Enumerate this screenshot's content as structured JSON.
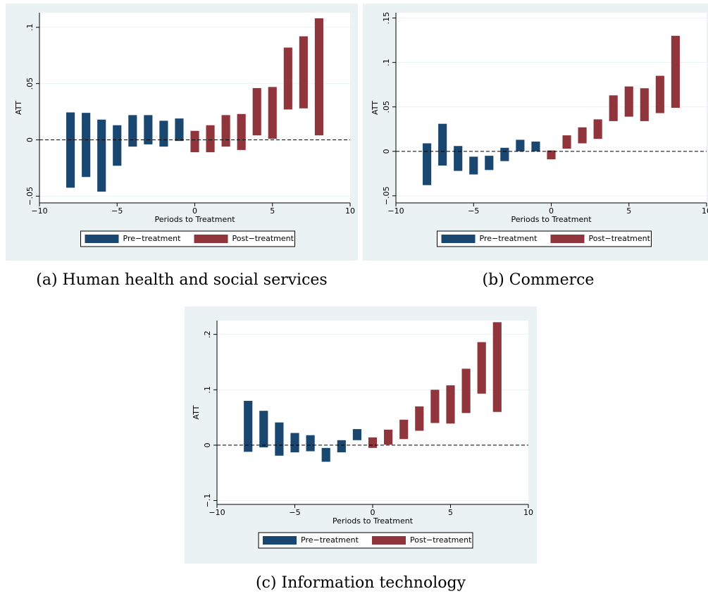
{
  "chart_data": [
    {
      "type": "range_bar",
      "caption": "(a) Human health and social services",
      "xlabel": "Periods to Treatment",
      "ylabel": "ATT",
      "xlim": [
        -10,
        10
      ],
      "xticks": [
        {
          "value": -10,
          "label": "−10"
        },
        {
          "value": -5,
          "label": "−5"
        },
        0,
        5,
        10
      ],
      "ylim": [
        -0.056,
        0.113
      ],
      "yticks": [
        {
          "value": -0.05,
          "label": "−.05"
        },
        0,
        {
          "value": 0.05,
          "label": ".05"
        },
        {
          "value": 0.1,
          "label": ".1"
        }
      ],
      "grid": true,
      "reference_line": 0,
      "legend": "bottom",
      "series": [
        {
          "name": "Pre−treatment",
          "color": "#1a476f",
          "x": [
            -8,
            -7,
            -6,
            -5,
            -4,
            -3,
            -2,
            -1
          ],
          "low": [
            -0.0425,
            -0.033,
            -0.046,
            -0.023,
            -0.006,
            -0.004,
            -0.006,
            -0.001
          ],
          "high": [
            0.0244,
            0.024,
            0.018,
            0.013,
            0.022,
            0.022,
            0.017,
            0.019
          ]
        },
        {
          "name": "Post−treatment",
          "color": "#90353b",
          "x": [
            0,
            1,
            2,
            3,
            4,
            5,
            6,
            7,
            8
          ],
          "low": [
            -0.011,
            -0.011,
            -0.006,
            -0.009,
            0.004,
            0.001,
            0.027,
            0.028,
            0.004
          ],
          "high": [
            0.008,
            0.013,
            0.022,
            0.023,
            0.046,
            0.047,
            0.082,
            0.092,
            0.108
          ]
        }
      ]
    },
    {
      "type": "range_bar",
      "caption": "(b) Commerce",
      "xlabel": "Periods to Treatment",
      "ylabel": "ATT",
      "xlim": [
        -10,
        10
      ],
      "xticks": [
        {
          "value": -10,
          "label": "−10"
        },
        {
          "value": -5,
          "label": "−5"
        },
        0,
        5,
        10
      ],
      "ylim": [
        -0.058,
        0.156
      ],
      "yticks": [
        {
          "value": -0.05,
          "label": "−.05"
        },
        0,
        {
          "value": 0.05,
          "label": ".05"
        },
        {
          "value": 0.1,
          "label": ".1"
        },
        {
          "value": 0.15,
          "label": ".15"
        }
      ],
      "grid": true,
      "reference_line": 0,
      "legend": "bottom",
      "series": [
        {
          "name": "Pre−treatment",
          "color": "#1a476f",
          "x": [
            -8,
            -7,
            -6,
            -5,
            -4,
            -3,
            -2,
            -1
          ],
          "low": [
            -0.038,
            -0.016,
            -0.022,
            -0.026,
            -0.021,
            -0.011,
            0,
            0
          ],
          "high": [
            0.009,
            0.031,
            0.006,
            -0.006,
            -0.005,
            0.004,
            0.013,
            0.011
          ]
        },
        {
          "name": "Post−treatment",
          "color": "#90353b",
          "x": [
            0,
            1,
            2,
            3,
            4,
            5,
            6,
            7,
            8
          ],
          "low": [
            -0.009,
            0.003,
            0.009,
            0.014,
            0.034,
            0.039,
            0.034,
            0.043,
            0.049
          ],
          "high": [
            0.001,
            0.018,
            0.027,
            0.036,
            0.063,
            0.073,
            0.071,
            0.085,
            0.13
          ]
        }
      ]
    },
    {
      "type": "range_bar",
      "caption": "(c) Information technology",
      "xlabel": "Periods to Treatment",
      "ylabel": "ATT",
      "xlim": [
        -10,
        10
      ],
      "xticks": [
        {
          "value": -10,
          "label": "−10"
        },
        {
          "value": -5,
          "label": "−5"
        },
        0,
        5,
        10
      ],
      "ylim": [
        -0.107,
        0.225
      ],
      "yticks": [
        {
          "value": -0.1,
          "label": "−.1"
        },
        0,
        {
          "value": 0.1,
          "label": ".1"
        },
        {
          "value": 0.2,
          "label": ".2"
        }
      ],
      "grid": true,
      "reference_line": 0,
      "legend": "bottom",
      "series": [
        {
          "name": "Pre−treatment",
          "color": "#1a476f",
          "x": [
            -8,
            -7,
            -6,
            -5,
            -4,
            -3,
            -2,
            -1
          ],
          "low": [
            -0.012,
            -0.004,
            -0.019,
            -0.013,
            -0.011,
            -0.03,
            -0.013,
            0.009
          ],
          "high": [
            0.08,
            0.062,
            0.041,
            0.022,
            0.018,
            -0.005,
            0.009,
            0.029
          ]
        },
        {
          "name": "Post−treatment",
          "color": "#90353b",
          "x": [
            0,
            1,
            2,
            3,
            4,
            5,
            6,
            7,
            8
          ],
          "low": [
            -0.005,
            0.001,
            0.011,
            0.026,
            0.04,
            0.039,
            0.058,
            0.093,
            0.06
          ],
          "high": [
            0.014,
            0.028,
            0.046,
            0.07,
            0.1,
            0.108,
            0.138,
            0.186,
            0.222
          ]
        }
      ]
    }
  ]
}
